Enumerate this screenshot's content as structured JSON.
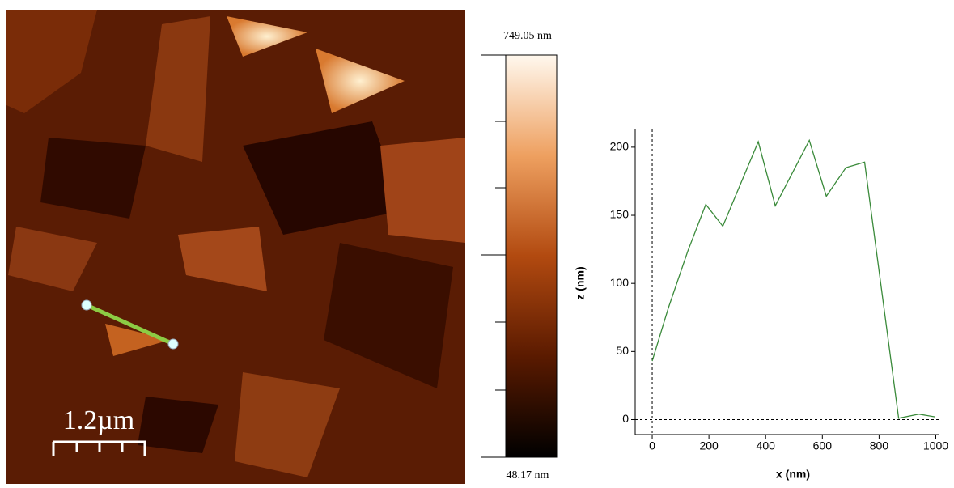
{
  "image": {
    "scale_bar": "1.2µm"
  },
  "colorbar": {
    "max_label": "749.05 nm",
    "min_label": "48.17 nm"
  },
  "chart_data": {
    "type": "line",
    "xlabel": "x (nm)",
    "ylabel": "z (nm)",
    "x": [
      0,
      57,
      126,
      189,
      249,
      374,
      434,
      554,
      614,
      683,
      749,
      869,
      940,
      997
    ],
    "series": [
      {
        "color": "#3a8a3a",
        "values": [
          43,
          82,
          124,
          158,
          142,
          204,
          157,
          205,
          164,
          185,
          189,
          1,
          4,
          2
        ]
      }
    ],
    "xlim": [
      -60,
      1010
    ],
    "ylim": [
      -11,
      213
    ],
    "xticks": [
      0,
      200,
      400,
      600,
      800,
      1000
    ],
    "yticks": [
      0,
      50,
      100,
      150,
      200
    ]
  }
}
